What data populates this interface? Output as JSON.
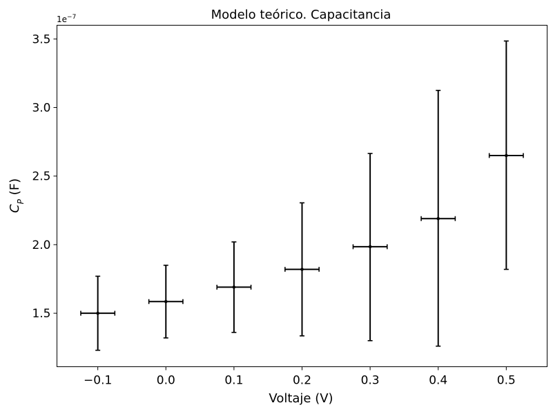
{
  "chart_data": {
    "type": "scatter",
    "title": "Modelo teórico. Capacitancia",
    "xlabel": "Voltaje (V)",
    "ylabel": {
      "symbol": "C",
      "subscript": "P",
      "unit": " (F)"
    },
    "y_offset_label": {
      "base": "1e",
      "exponent": "−7"
    },
    "xlim": [
      -0.16,
      0.56
    ],
    "ylim": [
      1.11,
      3.6
    ],
    "x_ticks": [
      -0.1,
      0.0,
      0.1,
      0.2,
      0.3,
      0.4,
      0.5
    ],
    "x_tick_labels": [
      "−0.1",
      "0.0",
      "0.1",
      "0.2",
      "0.3",
      "0.4",
      "0.5"
    ],
    "y_ticks": [
      1.5,
      2.0,
      2.5,
      3.0,
      3.5
    ],
    "y_tick_labels": [
      "1.5",
      "2.0",
      "2.5",
      "3.0",
      "3.5"
    ],
    "grid": false,
    "legend": "none",
    "series": [
      {
        "color": "#000000",
        "x": [
          -0.1,
          0.0,
          0.1,
          0.2,
          0.3,
          0.4,
          0.5
        ],
        "y": [
          1.5,
          1.585,
          1.69,
          1.82,
          1.985,
          2.19,
          2.65
        ],
        "x_err": [
          0.025,
          0.025,
          0.025,
          0.025,
          0.025,
          0.025,
          0.025
        ],
        "y_err_low": [
          1.23,
          1.32,
          1.36,
          1.335,
          1.3,
          1.26,
          1.82
        ],
        "y_err_high": [
          1.77,
          1.85,
          2.02,
          2.305,
          2.665,
          3.125,
          3.485
        ]
      }
    ]
  }
}
